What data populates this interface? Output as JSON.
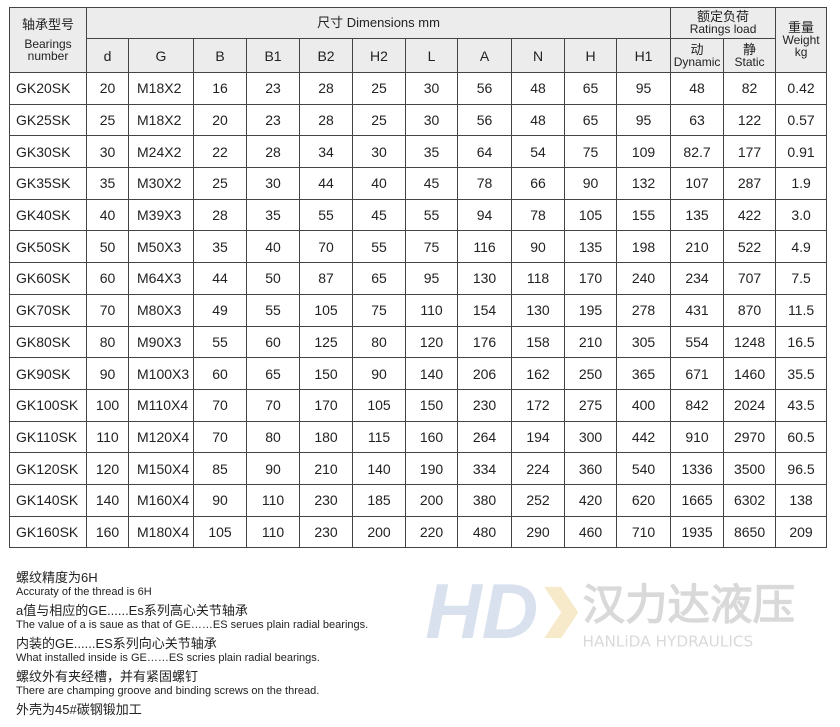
{
  "header": {
    "model_cn": "轴承型号",
    "model_en": "Bearings number",
    "dims": "尺寸 Dimensions mm",
    "load_cn": "额定负荷",
    "load_en": "Ratings load",
    "weight_cn": "重量",
    "weight_en": "Weight",
    "weight_unit": "kg",
    "cols": [
      "d",
      "G",
      "B",
      "B1",
      "B2",
      "H2",
      "L",
      "A",
      "N",
      "H",
      "H1"
    ],
    "dyn_cn": "动",
    "dyn_en": "Dynamic",
    "sta_cn": "静",
    "sta_en": "Static"
  },
  "rows": [
    [
      "GK20SK",
      "20",
      "M18X2",
      "16",
      "23",
      "28",
      "25",
      "30",
      "56",
      "48",
      "65",
      "95",
      "48",
      "82",
      "0.42"
    ],
    [
      "GK25SK",
      "25",
      "M18X2",
      "20",
      "23",
      "28",
      "25",
      "30",
      "56",
      "48",
      "65",
      "95",
      "63",
      "122",
      "0.57"
    ],
    [
      "GK30SK",
      "30",
      "M24X2",
      "22",
      "28",
      "34",
      "30",
      "35",
      "64",
      "54",
      "75",
      "109",
      "82.7",
      "177",
      "0.91"
    ],
    [
      "GK35SK",
      "35",
      "M30X2",
      "25",
      "30",
      "44",
      "40",
      "45",
      "78",
      "66",
      "90",
      "132",
      "107",
      "287",
      "1.9"
    ],
    [
      "GK40SK",
      "40",
      "M39X3",
      "28",
      "35",
      "55",
      "45",
      "55",
      "94",
      "78",
      "105",
      "155",
      "135",
      "422",
      "3.0"
    ],
    [
      "GK50SK",
      "50",
      "M50X3",
      "35",
      "40",
      "70",
      "55",
      "75",
      "116",
      "90",
      "135",
      "198",
      "210",
      "522",
      "4.9"
    ],
    [
      "GK60SK",
      "60",
      "M64X3",
      "44",
      "50",
      "87",
      "65",
      "95",
      "130",
      "118",
      "170",
      "240",
      "234",
      "707",
      "7.5"
    ],
    [
      "GK70SK",
      "70",
      "M80X3",
      "49",
      "55",
      "105",
      "75",
      "110",
      "154",
      "130",
      "195",
      "278",
      "431",
      "870",
      "11.5"
    ],
    [
      "GK80SK",
      "80",
      "M90X3",
      "55",
      "60",
      "125",
      "80",
      "120",
      "176",
      "158",
      "210",
      "305",
      "554",
      "1248",
      "16.5"
    ],
    [
      "GK90SK",
      "90",
      "M100X3",
      "60",
      "65",
      "150",
      "90",
      "140",
      "206",
      "162",
      "250",
      "365",
      "671",
      "1460",
      "35.5"
    ],
    [
      "GK100SK",
      "100",
      "M110X4",
      "70",
      "70",
      "170",
      "105",
      "150",
      "230",
      "172",
      "275",
      "400",
      "842",
      "2024",
      "43.5"
    ],
    [
      "GK110SK",
      "110",
      "M120X4",
      "70",
      "80",
      "180",
      "115",
      "160",
      "264",
      "194",
      "300",
      "442",
      "910",
      "2970",
      "60.5"
    ],
    [
      "GK120SK",
      "120",
      "M150X4",
      "85",
      "90",
      "210",
      "140",
      "190",
      "334",
      "224",
      "360",
      "540",
      "1336",
      "3500",
      "96.5"
    ],
    [
      "GK140SK",
      "140",
      "M160X4",
      "90",
      "110",
      "230",
      "185",
      "200",
      "380",
      "252",
      "420",
      "620",
      "1665",
      "6302",
      "138"
    ],
    [
      "GK160SK",
      "160",
      "M180X4",
      "105",
      "110",
      "230",
      "200",
      "220",
      "480",
      "290",
      "460",
      "710",
      "1935",
      "8650",
      "209"
    ]
  ],
  "watermark": {
    "logo": "HD",
    "cn": "汉力达液压",
    "en": "HANLiDA HYDRAULICS"
  },
  "notes": [
    {
      "cn": "螺纹精度为6H",
      "en": "Accuraty of the thread is 6H"
    },
    {
      "cn": "a值与相应的GE......Es系列高心关节轴承",
      "en": "The value of a is saue as that of GE……ES  serues plain radial bearings."
    },
    {
      "cn": "内装的GE......ES系列向心关节轴承",
      "en": "What installed inside is GE……ES  scries plain radial bearings."
    },
    {
      "cn": "螺纹外有夹经槽，并有紧固螺钉",
      "en": "There are champing groove and binding screws on the thread."
    },
    {
      "cn": "外壳为45#碳钢锻加工",
      "en": ""
    }
  ]
}
